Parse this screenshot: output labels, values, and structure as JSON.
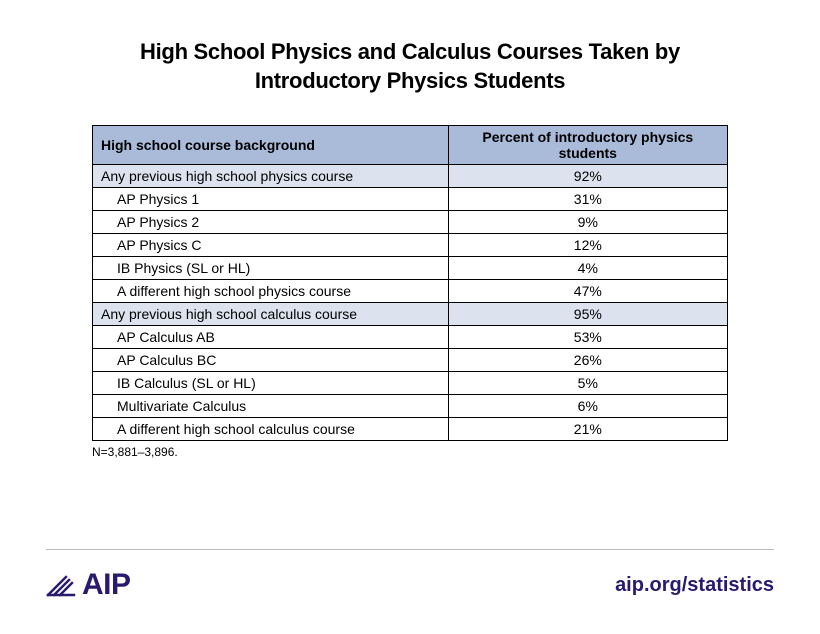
{
  "title_line1": "High School Physics and Calculus Courses Taken by",
  "title_line2": "Introductory Physics Students",
  "table": {
    "columns": [
      "High school course background",
      "Percent of introductory physics students"
    ],
    "column_widths": [
      "56%",
      "44%"
    ],
    "header_bg": "#a9bbd9",
    "section_bg": "#dce3ef",
    "border_color": "#000000",
    "font_size": 14,
    "rows": [
      {
        "label": "Any previous high school physics course",
        "value": "92%",
        "section": true,
        "indent": false
      },
      {
        "label": "AP Physics 1",
        "value": "31%",
        "section": false,
        "indent": true
      },
      {
        "label": "AP Physics 2",
        "value": "9%",
        "section": false,
        "indent": true
      },
      {
        "label": "AP Physics C",
        "value": "12%",
        "section": false,
        "indent": true
      },
      {
        "label": "IB Physics (SL or HL)",
        "value": "4%",
        "section": false,
        "indent": true
      },
      {
        "label": "A different high school physics course",
        "value": "47%",
        "section": false,
        "indent": true
      },
      {
        "label": "Any previous high school calculus course",
        "value": "95%",
        "section": true,
        "indent": false
      },
      {
        "label": "AP Calculus AB",
        "value": "53%",
        "section": false,
        "indent": true
      },
      {
        "label": "AP Calculus BC",
        "value": "26%",
        "section": false,
        "indent": true
      },
      {
        "label": "IB Calculus (SL or HL)",
        "value": "5%",
        "section": false,
        "indent": true
      },
      {
        "label": "Multivariate Calculus",
        "value": "6%",
        "section": false,
        "indent": true
      },
      {
        "label": "A different high school calculus course",
        "value": "21%",
        "section": false,
        "indent": true
      }
    ]
  },
  "footnote": "N=3,881–3,896.",
  "footer": {
    "logo_text": "AIP",
    "url": "aip.org/statistics",
    "brand_color": "#2a1a6e",
    "divider_color": "#bcbcbc"
  }
}
